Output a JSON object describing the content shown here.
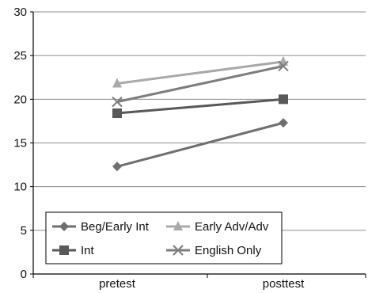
{
  "chart_data": {
    "type": "line",
    "title": "",
    "xlabel": "",
    "ylabel": "",
    "categories": [
      "pretest",
      "posttest"
    ],
    "ylim": [
      0,
      30
    ],
    "yticks": [
      0,
      5,
      10,
      15,
      20,
      25,
      30
    ],
    "grid": true,
    "legend_position": "bottom",
    "series": [
      {
        "name": "Beg/Early Int",
        "values": [
          12.3,
          17.3
        ],
        "marker": "diamond",
        "color": "#6f6f6f"
      },
      {
        "name": "Early Adv/Adv",
        "values": [
          21.8,
          24.3
        ],
        "marker": "triangle",
        "color": "#a9a9a9"
      },
      {
        "name": "Int",
        "values": [
          18.4,
          20.0
        ],
        "marker": "square",
        "color": "#595959"
      },
      {
        "name": "English Only",
        "values": [
          19.7,
          23.8
        ],
        "marker": "x",
        "color": "#7d7d7d"
      }
    ]
  }
}
